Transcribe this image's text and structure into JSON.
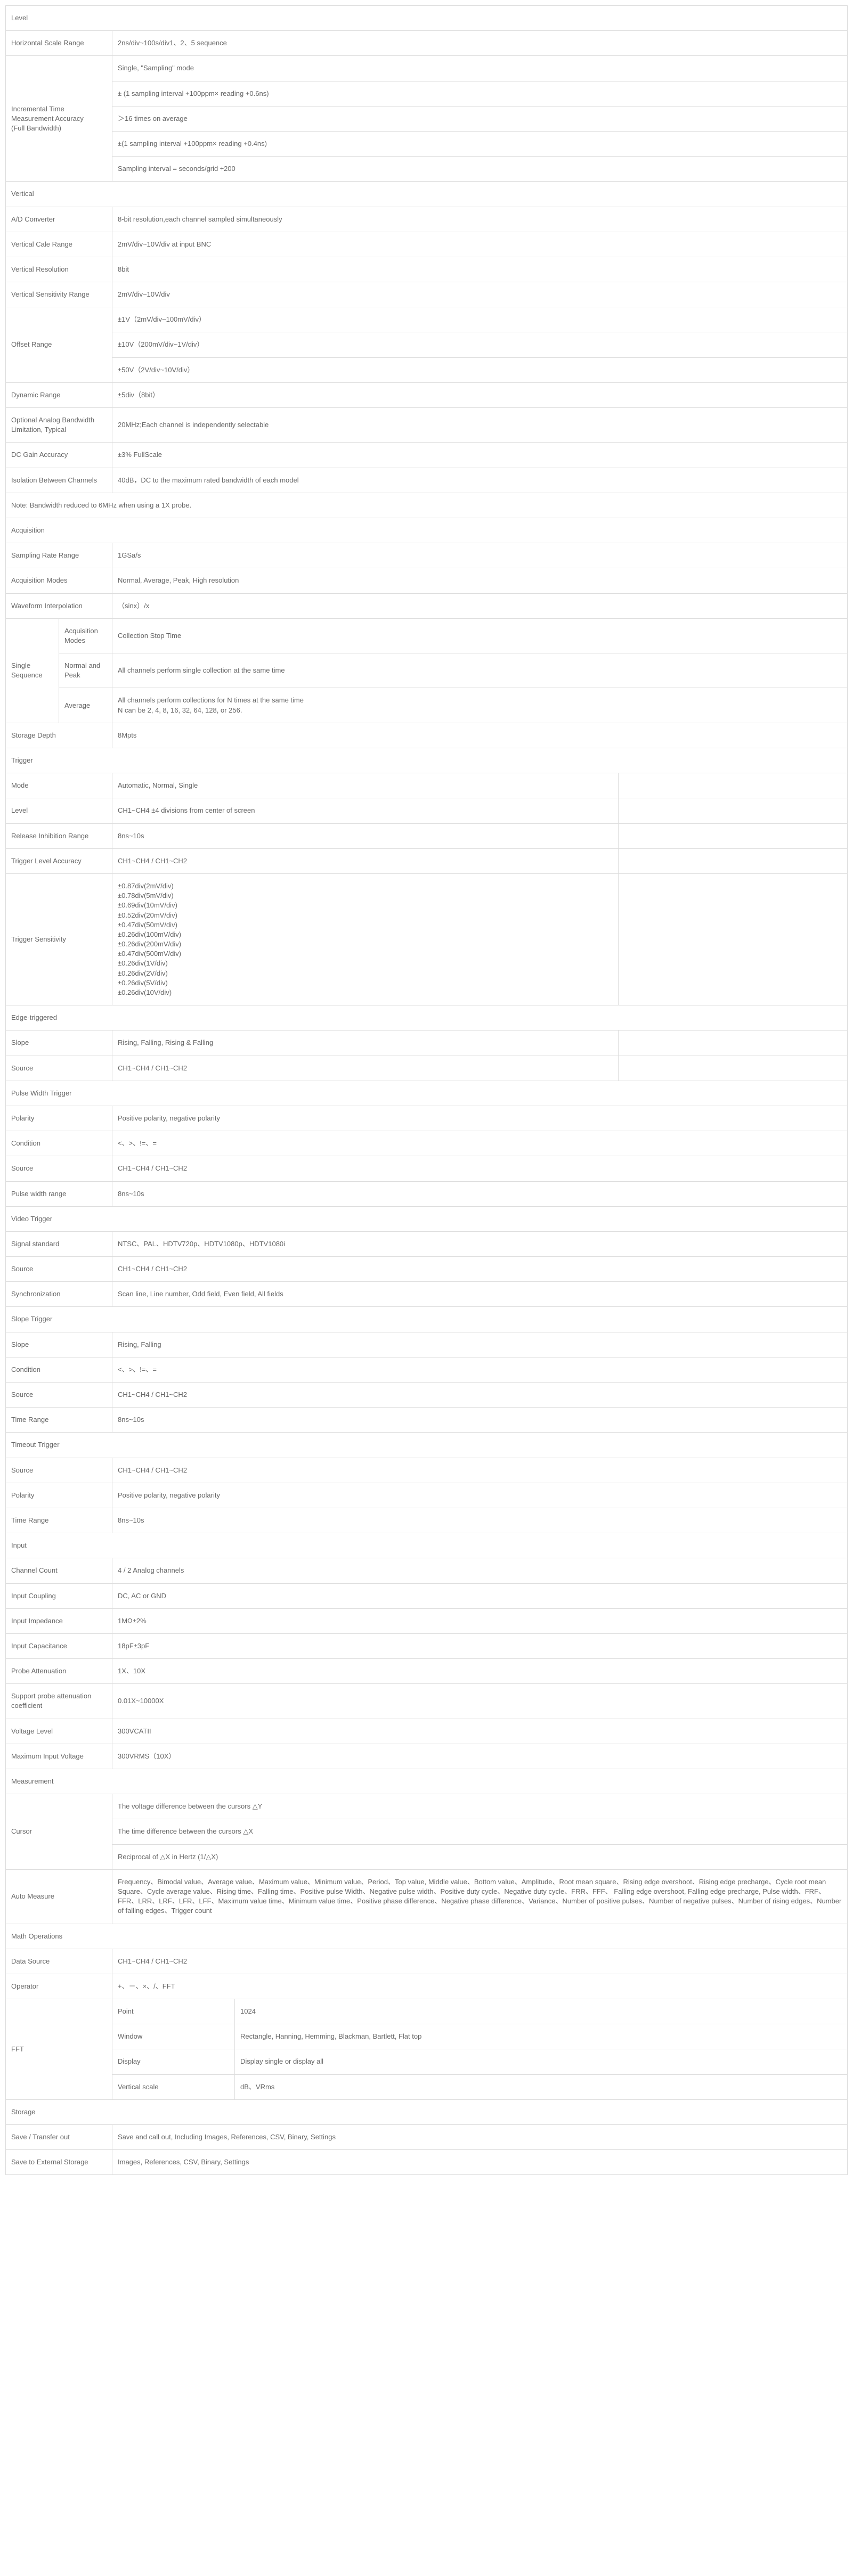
{
  "rows": [
    {
      "type": "header",
      "cells": [
        {
          "t": "Level",
          "colspan": 5
        }
      ]
    },
    {
      "cells": [
        {
          "t": "Horizontal Scale Range",
          "colspan": 2
        },
        {
          "t": "2ns/div~100s/div1、2、5 sequence",
          "colspan": 3
        }
      ]
    },
    {
      "cells": [
        {
          "t": "Incremental Time Measurement Accuracy\n(Full Bandwidth)",
          "colspan": 2,
          "rowspan": 5
        },
        {
          "t": "Single, \"Sampling\" mode",
          "colspan": 3
        }
      ]
    },
    {
      "cells": [
        {
          "t": "± (1 sampling interval +100ppm× reading +0.6ns)",
          "colspan": 3
        }
      ]
    },
    {
      "cells": [
        {
          "t": "＞16 times on average",
          "colspan": 3
        }
      ]
    },
    {
      "cells": [
        {
          "t": "±(1 sampling interval +100ppm× reading +0.4ns)",
          "colspan": 3
        }
      ]
    },
    {
      "cells": [
        {
          "t": "Sampling interval = seconds/grid ÷200",
          "colspan": 3
        }
      ]
    },
    {
      "type": "header",
      "cells": [
        {
          "t": "Vertical",
          "colspan": 5
        }
      ]
    },
    {
      "cells": [
        {
          "t": "A/D Converter",
          "colspan": 2
        },
        {
          "t": "8-bit resolution,each channel sampled simultaneously",
          "colspan": 3
        }
      ]
    },
    {
      "cells": [
        {
          "t": "Vertical Cale Range",
          "colspan": 2
        },
        {
          "t": "2mV/div~10V/div at input BNC",
          "colspan": 3
        }
      ]
    },
    {
      "cells": [
        {
          "t": "Vertical Resolution",
          "colspan": 2
        },
        {
          "t": "8bit",
          "colspan": 3
        }
      ]
    },
    {
      "cells": [
        {
          "t": "Vertical Sensitivity Range",
          "colspan": 2
        },
        {
          "t": "2mV/div~10V/div",
          "colspan": 3
        }
      ]
    },
    {
      "cells": [
        {
          "t": "Offset Range",
          "colspan": 2,
          "rowspan": 3
        },
        {
          "t": "±1V（2mV/div~100mV/div）",
          "colspan": 3
        }
      ]
    },
    {
      "cells": [
        {
          "t": "±10V（200mV/div~1V/div）",
          "colspan": 3
        }
      ]
    },
    {
      "cells": [
        {
          "t": "±50V（2V/div~10V/div）",
          "colspan": 3
        }
      ]
    },
    {
      "cells": [
        {
          "t": "Dynamic Range",
          "colspan": 2
        },
        {
          "t": "±5div（8bit）",
          "colspan": 3
        }
      ]
    },
    {
      "cells": [
        {
          "t": "Optional Analog Bandwidth Limitation, Typical",
          "colspan": 2
        },
        {
          "t": "20MHz;Each channel is independently selectable",
          "colspan": 3
        }
      ]
    },
    {
      "cells": [
        {
          "t": "DC Gain Accuracy",
          "colspan": 2
        },
        {
          "t": "±3% FullScale",
          "colspan": 3
        }
      ]
    },
    {
      "cells": [
        {
          "t": "Isolation Between Channels",
          "colspan": 2
        },
        {
          "t": "40dB，DC to the maximum rated bandwidth of each model",
          "colspan": 3
        }
      ]
    },
    {
      "cells": [
        {
          "t": "Note: Bandwidth reduced to 6MHz when using a 1X probe.",
          "colspan": 5
        }
      ]
    },
    {
      "type": "header",
      "cells": [
        {
          "t": "Acquisition",
          "colspan": 5
        }
      ]
    },
    {
      "cells": [
        {
          "t": "Sampling Rate Range",
          "colspan": 2
        },
        {
          "t": "1GSa/s",
          "colspan": 3
        }
      ]
    },
    {
      "cells": [
        {
          "t": "Acquisition Modes",
          "colspan": 2
        },
        {
          "t": "Normal, Average, Peak, High resolution",
          "colspan": 3
        }
      ]
    },
    {
      "cells": [
        {
          "t": "Waveform Interpolation",
          "colspan": 2
        },
        {
          "t": "（sinx）/x",
          "colspan": 3
        }
      ]
    },
    {
      "cells": [
        {
          "t": "Single Sequence",
          "rowspan": 3
        },
        {
          "t": "Acquisition Modes"
        },
        {
          "t": "Collection Stop Time",
          "colspan": 3
        }
      ]
    },
    {
      "cells": [
        {
          "t": "Normal and Peak"
        },
        {
          "t": "All channels perform single collection at the same time",
          "colspan": 3
        }
      ]
    },
    {
      "cells": [
        {
          "t": "Average"
        },
        {
          "t": "All channels perform collections for N times at the same time\nN can be 2, 4, 8, 16, 32, 64, 128, or 256.",
          "colspan": 3
        }
      ]
    },
    {
      "cells": [
        {
          "t": "Storage Depth",
          "colspan": 2
        },
        {
          "t": "8Mpts",
          "colspan": 3
        }
      ]
    },
    {
      "type": "header",
      "cells": [
        {
          "t": "Trigger",
          "colspan": 5
        }
      ]
    },
    {
      "cells": [
        {
          "t": "Mode",
          "colspan": 2
        },
        {
          "t": "Automatic, Normal, Single",
          "colspan": 2
        },
        {
          "t": ""
        }
      ]
    },
    {
      "cells": [
        {
          "t": "Level",
          "colspan": 2
        },
        {
          "t": "CH1~CH4  ±4 divisions from center of screen",
          "colspan": 2
        },
        {
          "t": ""
        }
      ]
    },
    {
      "cells": [
        {
          "t": "Release Inhibition Range",
          "colspan": 2
        },
        {
          "t": "8ns~10s",
          "colspan": 2
        },
        {
          "t": ""
        }
      ]
    },
    {
      "cells": [
        {
          "t": "Trigger Level Accuracy",
          "colspan": 2
        },
        {
          "t": "CH1~CH4 / CH1~CH2",
          "colspan": 2
        },
        {
          "t": ""
        }
      ]
    },
    {
      "cells": [
        {
          "t": "Trigger Sensitivity",
          "colspan": 2
        },
        {
          "t": "±0.87div(2mV/div)\n±0.78div(5mV/div)\n±0.69div(10mV/div)\n±0.52div(20mV/div)\n±0.47div(50mV/div)\n±0.26div(100mV/div)\n±0.26div(200mV/div)\n±0.47div(500mV/div)\n±0.26div(1V/div)\n±0.26div(2V/div)\n±0.26div(5V/div)\n±0.26div(10V/div)",
          "colspan": 2
        },
        {
          "t": ""
        }
      ]
    },
    {
      "type": "header",
      "cells": [
        {
          "t": "Edge-triggered",
          "colspan": 5
        }
      ]
    },
    {
      "cells": [
        {
          "t": "Slope",
          "colspan": 2
        },
        {
          "t": "Rising, Falling, Rising & Falling",
          "colspan": 2
        },
        {
          "t": ""
        }
      ]
    },
    {
      "cells": [
        {
          "t": "Source",
          "colspan": 2
        },
        {
          "t": "CH1~CH4 / CH1~CH2",
          "colspan": 2
        },
        {
          "t": ""
        }
      ]
    },
    {
      "type": "header",
      "cells": [
        {
          "t": "Pulse Width Trigger",
          "colspan": 5
        }
      ]
    },
    {
      "cells": [
        {
          "t": "Polarity",
          "colspan": 2
        },
        {
          "t": "Positive polarity, negative polarity",
          "colspan": 3
        }
      ]
    },
    {
      "cells": [
        {
          "t": "Condition",
          "colspan": 2
        },
        {
          "t": "<、>、!=、=",
          "colspan": 3
        }
      ]
    },
    {
      "cells": [
        {
          "t": "Source",
          "colspan": 2
        },
        {
          "t": "CH1~CH4 / CH1~CH2",
          "colspan": 3
        }
      ]
    },
    {
      "cells": [
        {
          "t": "Pulse width range",
          "colspan": 2
        },
        {
          "t": "8ns~10s",
          "colspan": 3
        }
      ]
    },
    {
      "type": "header",
      "cells": [
        {
          "t": "Video Trigger",
          "colspan": 5
        }
      ]
    },
    {
      "cells": [
        {
          "t": "Signal standard",
          "colspan": 2
        },
        {
          "t": "NTSC、PAL、HDTV720p、HDTV1080p、HDTV1080i",
          "colspan": 3
        }
      ]
    },
    {
      "cells": [
        {
          "t": "Source",
          "colspan": 2
        },
        {
          "t": "CH1~CH4 / CH1~CH2",
          "colspan": 3
        }
      ]
    },
    {
      "cells": [
        {
          "t": "Synchronization",
          "colspan": 2
        },
        {
          "t": "Scan line, Line number, Odd field, Even field, All fields",
          "colspan": 3
        }
      ]
    },
    {
      "type": "header",
      "cells": [
        {
          "t": "Slope Trigger",
          "colspan": 5
        }
      ]
    },
    {
      "cells": [
        {
          "t": "Slope",
          "colspan": 2
        },
        {
          "t": "Rising, Falling",
          "colspan": 3
        }
      ]
    },
    {
      "cells": [
        {
          "t": "Condition",
          "colspan": 2
        },
        {
          "t": "<、>、!=、=",
          "colspan": 3
        }
      ]
    },
    {
      "cells": [
        {
          "t": "Source",
          "colspan": 2
        },
        {
          "t": "CH1~CH4 / CH1~CH2",
          "colspan": 3
        }
      ]
    },
    {
      "cells": [
        {
          "t": "Time Range",
          "colspan": 2
        },
        {
          "t": "8ns~10s",
          "colspan": 3
        }
      ]
    },
    {
      "type": "header",
      "cells": [
        {
          "t": "Timeout Trigger",
          "colspan": 5
        }
      ]
    },
    {
      "cells": [
        {
          "t": "Source",
          "colspan": 2
        },
        {
          "t": "CH1~CH4 / CH1~CH2",
          "colspan": 3
        }
      ]
    },
    {
      "cells": [
        {
          "t": "Polarity",
          "colspan": 2
        },
        {
          "t": "Positive polarity, negative polarity",
          "colspan": 3
        }
      ]
    },
    {
      "cells": [
        {
          "t": "Time Range",
          "colspan": 2
        },
        {
          "t": "8ns~10s",
          "colspan": 3
        }
      ]
    },
    {
      "type": "header",
      "cells": [
        {
          "t": "Input",
          "colspan": 5
        }
      ]
    },
    {
      "cells": [
        {
          "t": "Channel Count",
          "colspan": 2
        },
        {
          "t": "4 / 2 Analog channels",
          "colspan": 3
        }
      ]
    },
    {
      "cells": [
        {
          "t": "Input Coupling",
          "colspan": 2
        },
        {
          "t": "DC, AC or GND",
          "colspan": 3
        }
      ]
    },
    {
      "cells": [
        {
          "t": "Input Impedance",
          "colspan": 2
        },
        {
          "t": "1MΩ±2%",
          "colspan": 3
        }
      ]
    },
    {
      "cells": [
        {
          "t": "Input Capacitance",
          "colspan": 2
        },
        {
          "t": "18pF±3pF",
          "colspan": 3
        }
      ]
    },
    {
      "cells": [
        {
          "t": "Probe Attenuation",
          "colspan": 2
        },
        {
          "t": "1X、10X",
          "colspan": 3
        }
      ]
    },
    {
      "cells": [
        {
          "t": "Support probe attenuation coefficient",
          "colspan": 2
        },
        {
          "t": "0.01X~10000X",
          "colspan": 3
        }
      ]
    },
    {
      "cells": [
        {
          "t": "Voltage Level",
          "colspan": 2
        },
        {
          "t": "300VCATII",
          "colspan": 3
        }
      ]
    },
    {
      "cells": [
        {
          "t": "Maximum Input Voltage",
          "colspan": 2
        },
        {
          "t": "300VRMS（10X）",
          "colspan": 3
        }
      ]
    },
    {
      "type": "header",
      "cells": [
        {
          "t": "Measurement",
          "colspan": 5
        }
      ]
    },
    {
      "cells": [
        {
          "t": "Cursor",
          "colspan": 2,
          "rowspan": 3
        },
        {
          "t": "The voltage difference between the cursors △Y",
          "colspan": 3
        }
      ]
    },
    {
      "cells": [
        {
          "t": "The time difference between the cursors △X",
          "colspan": 3
        }
      ]
    },
    {
      "cells": [
        {
          "t": "Reciprocal of △X in Hertz (1/△X)",
          "colspan": 3
        }
      ]
    },
    {
      "cells": [
        {
          "t": "Auto Measure",
          "colspan": 2
        },
        {
          "t": "Frequency、Bimodal value、Average value、Maximum value、Minimum value、Period、Top value, Middle value、Bottom value、Amplitude、Root mean square、Rising edge overshoot、Rising edge precharge、Cycle root mean Square、Cycle average value、Rising time、Falling time、Positive pulse Width、Negative pulse width、Positive duty cycle、Negative duty cycle、FRR、FFF、 Falling edge overshoot, Falling edge precharge, Pulse width、FRF、FFR、LRR、LRF、LFR、LFF、Maximum value time、Minimum value time、Positive phase difference、Negative phase difference、Variance、Number of positive pulses、Number of negative pulses、Number of rising edges、Number of falling edges、Trigger count",
          "colspan": 3
        }
      ]
    },
    {
      "type": "header",
      "cells": [
        {
          "t": "Math Operations",
          "colspan": 5
        }
      ]
    },
    {
      "cells": [
        {
          "t": "Data Source",
          "colspan": 2
        },
        {
          "t": "CH1~CH4 / CH1~CH2",
          "colspan": 3
        }
      ]
    },
    {
      "cells": [
        {
          "t": "Operator",
          "colspan": 2
        },
        {
          "t": "+、－、×、/、FFT",
          "colspan": 3
        }
      ]
    },
    {
      "cells": [
        {
          "t": "FFT",
          "colspan": 2,
          "rowspan": 4
        },
        {
          "t": "Point"
        },
        {
          "t": "1024",
          "colspan": 2
        }
      ]
    },
    {
      "cells": [
        {
          "t": "Window"
        },
        {
          "t": "Rectangle, Hanning, Hemming, Blackman, Bartlett, Flat top",
          "colspan": 2
        }
      ]
    },
    {
      "cells": [
        {
          "t": "Display"
        },
        {
          "t": "Display single or display all",
          "colspan": 2
        }
      ]
    },
    {
      "cells": [
        {
          "t": "Vertical scale"
        },
        {
          "t": "dB、VRms",
          "colspan": 2
        }
      ]
    },
    {
      "type": "header",
      "cells": [
        {
          "t": "Storage",
          "colspan": 5
        }
      ]
    },
    {
      "cells": [
        {
          "t": "Save / Transfer out",
          "colspan": 2
        },
        {
          "t": "Save and call out, Including Images, References, CSV, Binary, Settings",
          "colspan": 3
        }
      ]
    },
    {
      "cells": [
        {
          "t": "Save to External Storage",
          "colspan": 2
        },
        {
          "t": "Images, References, CSV, Binary, Settings",
          "colspan": 3
        }
      ]
    }
  ]
}
